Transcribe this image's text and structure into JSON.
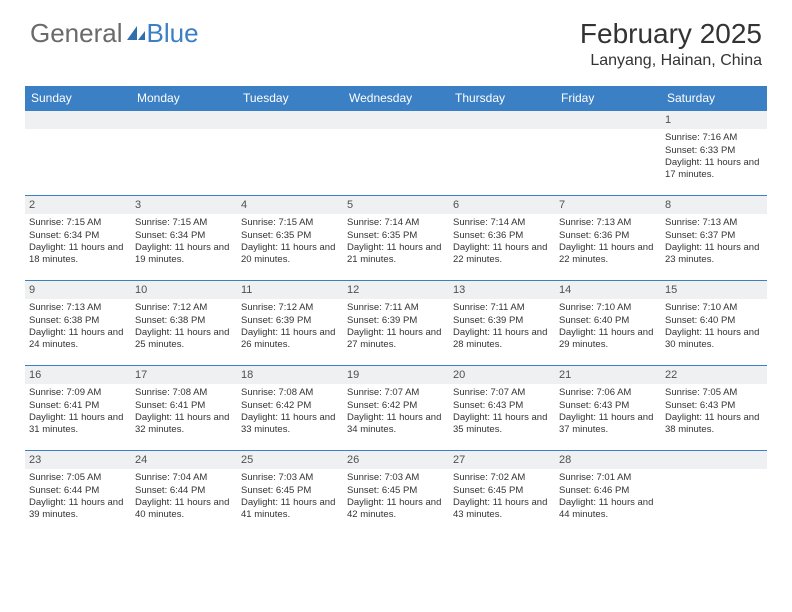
{
  "logo": {
    "text_a": "General",
    "text_b": "Blue"
  },
  "title": "February 2025",
  "location": "Lanyang, Hainan, China",
  "colors": {
    "header_bg": "#3b7fc4",
    "header_text": "#ffffff",
    "daynum_bg": "#eef0f2",
    "border": "#3b7fc4",
    "body_text": "#333333"
  },
  "day_headers": [
    "Sunday",
    "Monday",
    "Tuesday",
    "Wednesday",
    "Thursday",
    "Friday",
    "Saturday"
  ],
  "weeks": [
    [
      {
        "n": "",
        "sr": "",
        "ss": "",
        "dl": ""
      },
      {
        "n": "",
        "sr": "",
        "ss": "",
        "dl": ""
      },
      {
        "n": "",
        "sr": "",
        "ss": "",
        "dl": ""
      },
      {
        "n": "",
        "sr": "",
        "ss": "",
        "dl": ""
      },
      {
        "n": "",
        "sr": "",
        "ss": "",
        "dl": ""
      },
      {
        "n": "",
        "sr": "",
        "ss": "",
        "dl": ""
      },
      {
        "n": "1",
        "sr": "Sunrise: 7:16 AM",
        "ss": "Sunset: 6:33 PM",
        "dl": "Daylight: 11 hours and 17 minutes."
      }
    ],
    [
      {
        "n": "2",
        "sr": "Sunrise: 7:15 AM",
        "ss": "Sunset: 6:34 PM",
        "dl": "Daylight: 11 hours and 18 minutes."
      },
      {
        "n": "3",
        "sr": "Sunrise: 7:15 AM",
        "ss": "Sunset: 6:34 PM",
        "dl": "Daylight: 11 hours and 19 minutes."
      },
      {
        "n": "4",
        "sr": "Sunrise: 7:15 AM",
        "ss": "Sunset: 6:35 PM",
        "dl": "Daylight: 11 hours and 20 minutes."
      },
      {
        "n": "5",
        "sr": "Sunrise: 7:14 AM",
        "ss": "Sunset: 6:35 PM",
        "dl": "Daylight: 11 hours and 21 minutes."
      },
      {
        "n": "6",
        "sr": "Sunrise: 7:14 AM",
        "ss": "Sunset: 6:36 PM",
        "dl": "Daylight: 11 hours and 22 minutes."
      },
      {
        "n": "7",
        "sr": "Sunrise: 7:13 AM",
        "ss": "Sunset: 6:36 PM",
        "dl": "Daylight: 11 hours and 22 minutes."
      },
      {
        "n": "8",
        "sr": "Sunrise: 7:13 AM",
        "ss": "Sunset: 6:37 PM",
        "dl": "Daylight: 11 hours and 23 minutes."
      }
    ],
    [
      {
        "n": "9",
        "sr": "Sunrise: 7:13 AM",
        "ss": "Sunset: 6:38 PM",
        "dl": "Daylight: 11 hours and 24 minutes."
      },
      {
        "n": "10",
        "sr": "Sunrise: 7:12 AM",
        "ss": "Sunset: 6:38 PM",
        "dl": "Daylight: 11 hours and 25 minutes."
      },
      {
        "n": "11",
        "sr": "Sunrise: 7:12 AM",
        "ss": "Sunset: 6:39 PM",
        "dl": "Daylight: 11 hours and 26 minutes."
      },
      {
        "n": "12",
        "sr": "Sunrise: 7:11 AM",
        "ss": "Sunset: 6:39 PM",
        "dl": "Daylight: 11 hours and 27 minutes."
      },
      {
        "n": "13",
        "sr": "Sunrise: 7:11 AM",
        "ss": "Sunset: 6:39 PM",
        "dl": "Daylight: 11 hours and 28 minutes."
      },
      {
        "n": "14",
        "sr": "Sunrise: 7:10 AM",
        "ss": "Sunset: 6:40 PM",
        "dl": "Daylight: 11 hours and 29 minutes."
      },
      {
        "n": "15",
        "sr": "Sunrise: 7:10 AM",
        "ss": "Sunset: 6:40 PM",
        "dl": "Daylight: 11 hours and 30 minutes."
      }
    ],
    [
      {
        "n": "16",
        "sr": "Sunrise: 7:09 AM",
        "ss": "Sunset: 6:41 PM",
        "dl": "Daylight: 11 hours and 31 minutes."
      },
      {
        "n": "17",
        "sr": "Sunrise: 7:08 AM",
        "ss": "Sunset: 6:41 PM",
        "dl": "Daylight: 11 hours and 32 minutes."
      },
      {
        "n": "18",
        "sr": "Sunrise: 7:08 AM",
        "ss": "Sunset: 6:42 PM",
        "dl": "Daylight: 11 hours and 33 minutes."
      },
      {
        "n": "19",
        "sr": "Sunrise: 7:07 AM",
        "ss": "Sunset: 6:42 PM",
        "dl": "Daylight: 11 hours and 34 minutes."
      },
      {
        "n": "20",
        "sr": "Sunrise: 7:07 AM",
        "ss": "Sunset: 6:43 PM",
        "dl": "Daylight: 11 hours and 35 minutes."
      },
      {
        "n": "21",
        "sr": "Sunrise: 7:06 AM",
        "ss": "Sunset: 6:43 PM",
        "dl": "Daylight: 11 hours and 37 minutes."
      },
      {
        "n": "22",
        "sr": "Sunrise: 7:05 AM",
        "ss": "Sunset: 6:43 PM",
        "dl": "Daylight: 11 hours and 38 minutes."
      }
    ],
    [
      {
        "n": "23",
        "sr": "Sunrise: 7:05 AM",
        "ss": "Sunset: 6:44 PM",
        "dl": "Daylight: 11 hours and 39 minutes."
      },
      {
        "n": "24",
        "sr": "Sunrise: 7:04 AM",
        "ss": "Sunset: 6:44 PM",
        "dl": "Daylight: 11 hours and 40 minutes."
      },
      {
        "n": "25",
        "sr": "Sunrise: 7:03 AM",
        "ss": "Sunset: 6:45 PM",
        "dl": "Daylight: 11 hours and 41 minutes."
      },
      {
        "n": "26",
        "sr": "Sunrise: 7:03 AM",
        "ss": "Sunset: 6:45 PM",
        "dl": "Daylight: 11 hours and 42 minutes."
      },
      {
        "n": "27",
        "sr": "Sunrise: 7:02 AM",
        "ss": "Sunset: 6:45 PM",
        "dl": "Daylight: 11 hours and 43 minutes."
      },
      {
        "n": "28",
        "sr": "Sunrise: 7:01 AM",
        "ss": "Sunset: 6:46 PM",
        "dl": "Daylight: 11 hours and 44 minutes."
      },
      {
        "n": "",
        "sr": "",
        "ss": "",
        "dl": ""
      }
    ]
  ]
}
